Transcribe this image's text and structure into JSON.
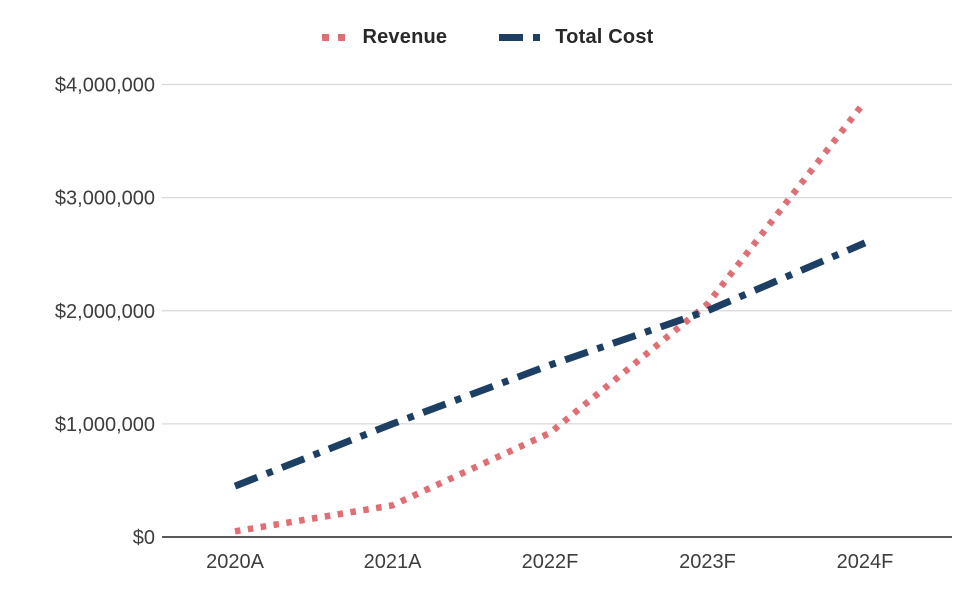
{
  "chart_data": {
    "type": "line",
    "categories": [
      "2020A",
      "2021A",
      "2022F",
      "2023F",
      "2024F"
    ],
    "series": [
      {
        "name": "Revenue",
        "values": [
          50000,
          280000,
          920000,
          2060000,
          3850000
        ],
        "color": "#DF6E75",
        "style": "dotted"
      },
      {
        "name": "Total Cost",
        "values": [
          450000,
          1000000,
          1520000,
          2000000,
          2600000
        ],
        "color": "#1C3F63",
        "style": "dash-dot"
      }
    ],
    "title": "",
    "xlabel": "",
    "ylabel": "",
    "ylim": [
      0,
      4000000
    ],
    "yticks": [
      0,
      1000000,
      2000000,
      3000000,
      4000000
    ],
    "ytick_labels": [
      "$0",
      "$1,000,000",
      "$2,000,000",
      "$3,000,000",
      "$4,000,000"
    ],
    "grid": true,
    "grid_color": "#d8d8d8",
    "axis_line_color": "#595959",
    "label_color": "#3d3d3d",
    "legend_position": "top-center"
  }
}
